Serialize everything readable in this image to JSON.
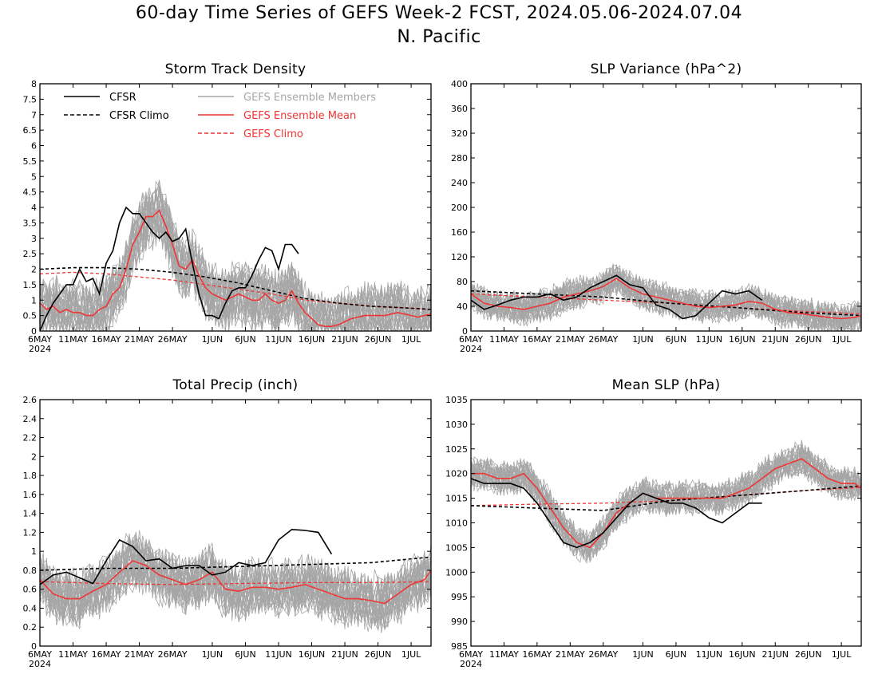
{
  "figure": {
    "title": "60-day Time Series of GEFS Week-2 FCST, 2024.05.06-2024.07.04",
    "subtitle": "N. Pacific"
  },
  "colors": {
    "cfsr": "#000000",
    "members": "#a6a6a6",
    "ens_mean": "#f03535",
    "gefs_climo": "#f03535"
  },
  "legend": {
    "cfsr": "CFSR",
    "cfsr_climo": "CFSR Climo",
    "members": "GEFS Ensemble Members",
    "ens_mean": "GEFS Ensemble Mean",
    "gefs_climo": "GEFS Climo"
  },
  "x_ticks": [
    "6MAY",
    "11MAY",
    "16MAY",
    "21MAY",
    "26MAY",
    "1JUN",
    "6JUN",
    "11JUN",
    "16JUN",
    "21JUN",
    "26JUN",
    "1JUL"
  ],
  "x_year": "2024",
  "chart_data": [
    {
      "type": "line",
      "title": "Storm Track Density",
      "ylim": [
        0,
        8
      ],
      "yticks": [
        "0",
        "0.5",
        "1",
        "1.5",
        "2",
        "2.5",
        "3",
        "3.5",
        "4",
        "4.5",
        "5",
        "5.5",
        "6",
        "6.5",
        "7",
        "7.5",
        "8"
      ],
      "x_day_range": [
        0,
        59
      ],
      "cfsr": {
        "x": [
          0,
          1,
          2,
          3,
          4,
          5,
          6,
          7,
          8,
          9,
          10,
          11,
          12,
          13,
          14,
          15,
          16,
          17,
          18,
          19,
          20,
          21,
          22,
          23,
          24,
          25,
          26,
          27,
          28,
          29,
          30,
          31,
          32,
          33,
          34,
          35,
          36,
          37,
          38,
          39,
          40,
          41,
          42
        ],
        "y": [
          0.0,
          0.5,
          0.9,
          1.2,
          1.5,
          1.5,
          2.0,
          1.6,
          1.7,
          1.2,
          2.2,
          2.6,
          3.5,
          4.0,
          3.8,
          3.8,
          3.5,
          3.2,
          3.0,
          3.2,
          2.9,
          3.0,
          3.3,
          2.2,
          1.2,
          0.5,
          0.5,
          0.4,
          0.9,
          1.3,
          1.4,
          1.4,
          1.8,
          2.3,
          2.7,
          2.6,
          2.0,
          2.8,
          2.8,
          2.5,
          null,
          null,
          null
        ]
      },
      "cfsr_climo": {
        "x": [
          0,
          5,
          10,
          15,
          20,
          25,
          30,
          35,
          40,
          45,
          50,
          55,
          59
        ],
        "y": [
          2.0,
          2.05,
          2.05,
          2.0,
          1.9,
          1.75,
          1.55,
          1.3,
          1.05,
          0.9,
          0.8,
          0.75,
          0.7
        ]
      },
      "ens_mean": {
        "x": [
          0,
          1,
          2,
          3,
          4,
          5,
          6,
          7,
          8,
          9,
          10,
          11,
          12,
          13,
          14,
          15,
          16,
          17,
          18,
          19,
          20,
          21,
          22,
          23,
          24,
          25,
          26,
          27,
          28,
          29,
          30,
          31,
          32,
          33,
          34,
          35,
          36,
          37,
          38,
          39,
          40,
          41,
          42,
          43,
          44,
          45,
          46,
          47,
          48,
          49,
          50,
          51,
          52,
          53,
          54,
          55,
          56,
          57,
          58,
          59
        ],
        "y": [
          0.9,
          0.7,
          0.8,
          0.6,
          0.7,
          0.6,
          0.6,
          0.5,
          0.5,
          0.7,
          0.8,
          1.2,
          1.4,
          2.0,
          2.8,
          3.2,
          3.7,
          3.7,
          3.9,
          3.4,
          2.8,
          2.1,
          2.0,
          2.3,
          1.8,
          1.4,
          1.2,
          1.1,
          1.0,
          1.1,
          1.2,
          1.1,
          1.0,
          1.0,
          1.2,
          1.0,
          0.9,
          1.0,
          1.3,
          0.9,
          0.6,
          0.4,
          0.2,
          0.15,
          0.15,
          0.2,
          0.3,
          0.4,
          0.45,
          0.5,
          0.5,
          0.5,
          0.5,
          0.55,
          0.6,
          0.55,
          0.5,
          0.45,
          0.5,
          0.55
        ]
      },
      "gefs_climo": {
        "x": [
          0,
          5,
          10,
          15,
          20,
          25,
          30,
          35,
          40,
          45,
          50,
          55,
          59
        ],
        "y": [
          1.85,
          1.9,
          1.85,
          1.75,
          1.65,
          1.5,
          1.35,
          1.2,
          1.0,
          0.9,
          0.8,
          0.75,
          0.7
        ]
      },
      "member_spread": {
        "center": "ens_mean",
        "half_width": 1.2,
        "floor": 0
      },
      "has_legend": true
    },
    {
      "type": "line",
      "title": "SLP Variance (hPa^2)",
      "ylim": [
        0,
        400
      ],
      "yticks": [
        "0",
        "40",
        "80",
        "120",
        "160",
        "200",
        "240",
        "280",
        "320",
        "360",
        "400"
      ],
      "x_day_range": [
        0,
        59
      ],
      "cfsr": {
        "x": [
          0,
          2,
          4,
          6,
          8,
          10,
          12,
          14,
          16,
          18,
          20,
          22,
          24,
          26,
          28,
          30,
          32,
          34,
          36,
          38,
          40,
          42,
          44
        ],
        "y": [
          50,
          35,
          42,
          50,
          55,
          55,
          60,
          50,
          55,
          70,
          80,
          90,
          75,
          70,
          42,
          35,
          20,
          25,
          45,
          65,
          60,
          65,
          50
        ]
      },
      "cfsr_climo": {
        "x": [
          0,
          10,
          20,
          30,
          40,
          50,
          59
        ],
        "y": [
          65,
          60,
          55,
          45,
          38,
          30,
          25
        ]
      },
      "ens_mean": {
        "x": [
          0,
          2,
          4,
          6,
          8,
          10,
          12,
          14,
          16,
          18,
          20,
          22,
          24,
          26,
          28,
          30,
          32,
          34,
          36,
          38,
          40,
          42,
          44,
          46,
          48,
          50,
          52,
          54,
          56,
          58,
          59
        ],
        "y": [
          60,
          45,
          40,
          38,
          35,
          40,
          45,
          55,
          60,
          65,
          72,
          85,
          70,
          60,
          55,
          50,
          45,
          40,
          38,
          40,
          42,
          48,
          45,
          35,
          30,
          28,
          25,
          22,
          20,
          22,
          25
        ]
      },
      "gefs_climo": {
        "x": [
          0,
          10,
          20,
          30,
          40,
          50,
          59
        ],
        "y": [
          60,
          55,
          50,
          45,
          38,
          32,
          28
        ]
      },
      "member_spread": {
        "center": "ens_mean",
        "half_width": 30,
        "floor": 0
      }
    },
    {
      "type": "line",
      "title": "Total Precip (inch)",
      "ylim": [
        0,
        2.6
      ],
      "yticks": [
        "0",
        "0.2",
        "0.4",
        "0.6",
        "0.8",
        "1",
        "1.2",
        "1.4",
        "1.6",
        "1.8",
        "2",
        "2.2",
        "2.4",
        "2.6"
      ],
      "x_day_range": [
        0,
        59
      ],
      "cfsr": {
        "x": [
          0,
          2,
          4,
          6,
          8,
          10,
          12,
          14,
          16,
          18,
          20,
          22,
          24,
          26,
          28,
          30,
          32,
          34,
          36,
          38,
          40,
          42,
          44
        ],
        "y": [
          0.65,
          0.75,
          0.78,
          0.72,
          0.66,
          0.9,
          1.12,
          1.05,
          0.9,
          0.92,
          0.82,
          0.85,
          0.85,
          0.75,
          0.78,
          0.88,
          0.85,
          0.88,
          1.12,
          1.23,
          1.22,
          1.2,
          0.97
        ]
      },
      "cfsr_climo": {
        "x": [
          0,
          10,
          20,
          30,
          40,
          50,
          59
        ],
        "y": [
          0.8,
          0.82,
          0.82,
          0.84,
          0.86,
          0.88,
          0.94
        ]
      },
      "ens_mean": {
        "x": [
          0,
          2,
          4,
          6,
          8,
          10,
          12,
          14,
          16,
          18,
          20,
          22,
          24,
          26,
          28,
          30,
          32,
          34,
          36,
          38,
          40,
          42,
          44,
          46,
          48,
          50,
          52,
          54,
          56,
          58,
          59
        ],
        "y": [
          0.7,
          0.55,
          0.5,
          0.5,
          0.58,
          0.65,
          0.78,
          0.9,
          0.85,
          0.75,
          0.7,
          0.65,
          0.7,
          0.78,
          0.6,
          0.58,
          0.62,
          0.62,
          0.6,
          0.62,
          0.65,
          0.6,
          0.55,
          0.5,
          0.5,
          0.48,
          0.45,
          0.55,
          0.65,
          0.7,
          0.8
        ]
      },
      "gefs_climo": {
        "x": [
          0,
          10,
          20,
          30,
          40,
          50,
          59
        ],
        "y": [
          0.68,
          0.66,
          0.65,
          0.66,
          0.67,
          0.67,
          0.68
        ]
      },
      "member_spread": {
        "center": "ens_mean",
        "half_width": 0.35,
        "floor": 0
      }
    },
    {
      "type": "line",
      "title": "Mean SLP (hPa)",
      "ylim": [
        985,
        1035
      ],
      "yticks": [
        "985",
        "990",
        "995",
        "1000",
        "1005",
        "1010",
        "1015",
        "1020",
        "1025",
        "1030",
        "1035"
      ],
      "x_day_range": [
        0,
        59
      ],
      "cfsr": {
        "x": [
          0,
          2,
          4,
          6,
          8,
          10,
          12,
          14,
          16,
          18,
          20,
          22,
          24,
          26,
          28,
          30,
          32,
          34,
          36,
          38,
          40,
          42,
          44
        ],
        "y": [
          1019,
          1018,
          1018,
          1018,
          1017,
          1014,
          1010,
          1006,
          1005,
          1006,
          1008,
          1011,
          1014,
          1016,
          1015,
          1014,
          1014,
          1013,
          1011,
          1010,
          1012,
          1014,
          1014
        ]
      },
      "cfsr_climo": {
        "x": [
          0,
          10,
          20,
          30,
          40,
          50,
          59
        ],
        "y": [
          1013.5,
          1013,
          1012.5,
          1014.5,
          1015.5,
          1016.5,
          1017.5
        ]
      },
      "ens_mean": {
        "x": [
          0,
          2,
          4,
          6,
          8,
          10,
          12,
          14,
          16,
          18,
          20,
          22,
          24,
          26,
          28,
          30,
          32,
          34,
          36,
          38,
          40,
          42,
          44,
          46,
          48,
          50,
          52,
          54,
          56,
          58,
          59
        ],
        "y": [
          1020,
          1020,
          1019,
          1019,
          1020,
          1017,
          1013,
          1009,
          1006,
          1005,
          1008,
          1012,
          1014,
          1016,
          1015,
          1015,
          1015,
          1015,
          1015,
          1015,
          1016,
          1017,
          1019,
          1021,
          1022,
          1023,
          1021,
          1019,
          1018,
          1018,
          1017
        ]
      },
      "gefs_climo": {
        "x": [
          0,
          10,
          20,
          30,
          40,
          50,
          59
        ],
        "y": [
          1013.5,
          1013.8,
          1014,
          1014.5,
          1015.5,
          1016.5,
          1017.2
        ]
      },
      "member_spread": {
        "center": "ens_mean",
        "half_width": 4,
        "floor": null
      }
    }
  ]
}
